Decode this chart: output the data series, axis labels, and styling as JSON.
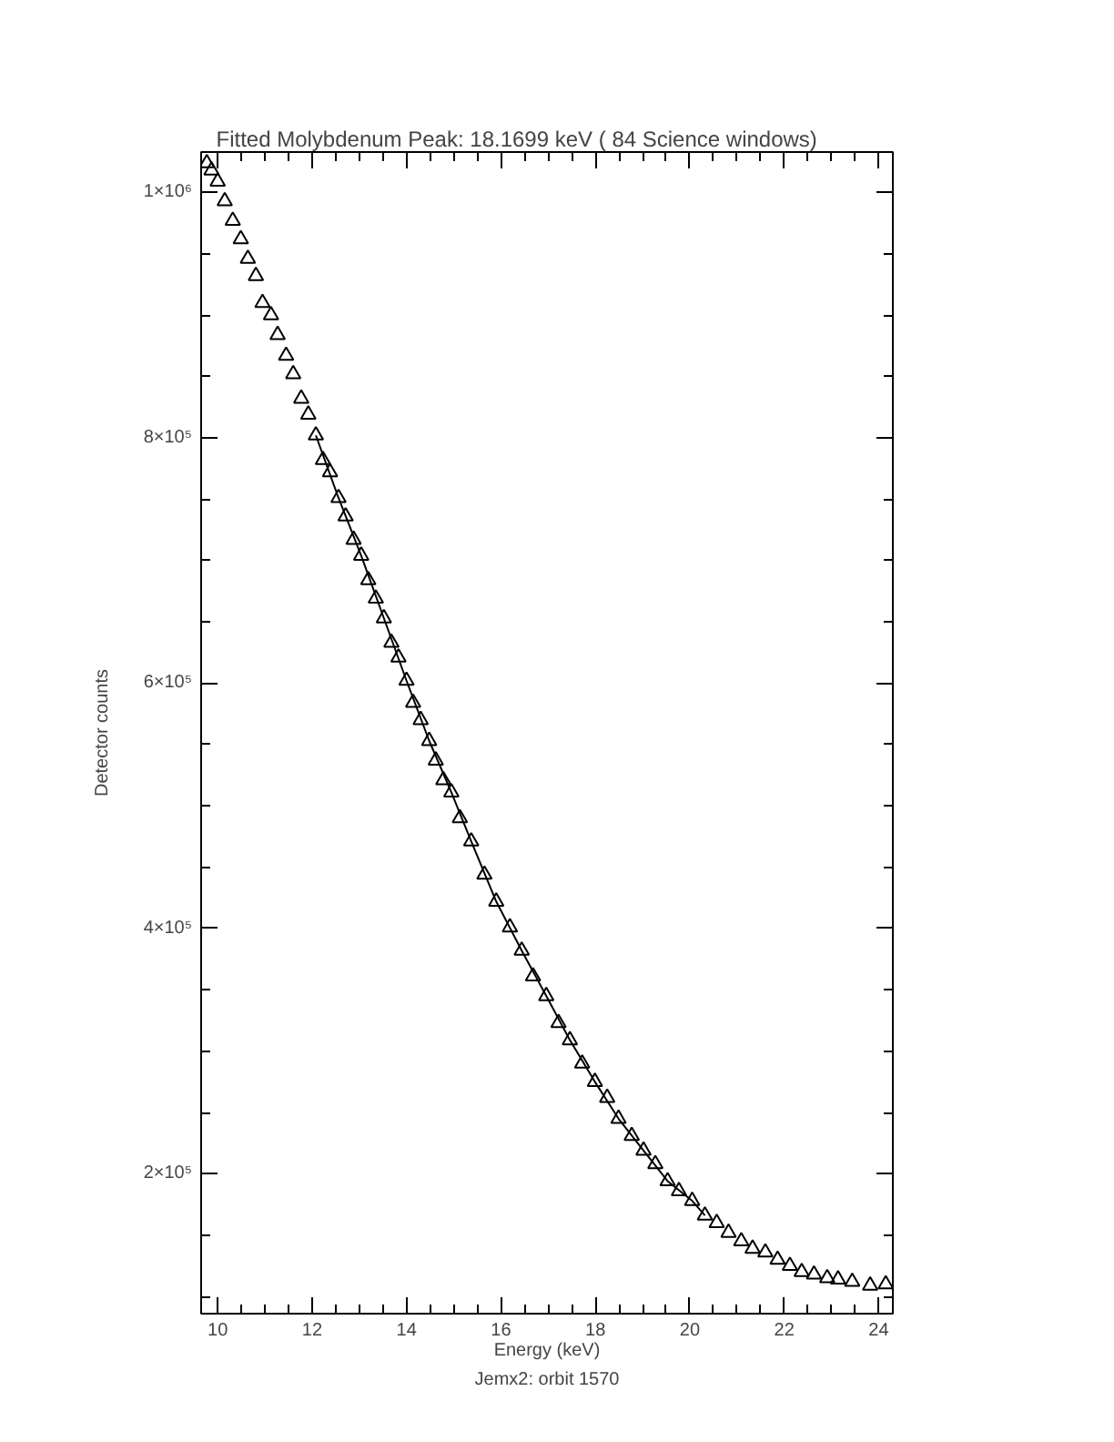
{
  "chart_data": {
    "type": "scatter",
    "title": "Fitted Molybdenum Peak:      18.1699 keV (      84 Science windows)",
    "xlabel": "Energy (keV)",
    "ylabel": "Detector counts",
    "annotations": [
      "Jemx2: orbit 1570"
    ],
    "x": [
      9.77,
      9.87,
      10.0,
      10.15,
      10.32,
      10.49,
      10.64,
      10.81,
      10.95,
      11.13,
      11.27,
      11.45,
      11.6,
      11.77,
      11.92,
      12.08,
      12.23,
      12.38,
      12.56,
      12.71,
      12.88,
      13.04,
      13.19,
      13.35,
      13.52,
      13.68,
      13.83,
      14.0,
      14.14,
      14.3,
      14.48,
      14.62,
      14.78,
      14.95,
      15.13,
      15.37,
      15.65,
      15.9,
      16.19,
      16.44,
      16.68,
      16.96,
      17.22,
      17.46,
      17.72,
      17.99,
      18.25,
      18.49,
      18.77,
      19.02,
      19.27,
      19.53,
      19.77,
      20.05,
      20.32,
      20.57,
      20.82,
      21.09,
      21.33,
      21.6,
      21.86,
      22.12,
      22.37,
      22.63,
      22.91,
      23.14,
      23.44,
      23.82,
      24.15
    ],
    "series": [
      {
        "color": "#000000",
        "marker": "triangle",
        "values": [
          1024000,
          1018000,
          1009000,
          993000,
          977000,
          962000,
          946000,
          932000,
          910000,
          900000,
          884000,
          867000,
          852000,
          832000,
          819000,
          802000,
          782000,
          772000,
          751000,
          736000,
          717000,
          704000,
          684000,
          669000,
          653000,
          633000,
          621000,
          602000,
          584000,
          570000,
          553000,
          537000,
          521000,
          511000,
          490000,
          471000,
          444000,
          422000,
          401000,
          382000,
          361000,
          345000,
          323000,
          309000,
          290000,
          275000,
          262000,
          245000,
          231000,
          219000,
          208000,
          194000,
          186000,
          178000,
          166000,
          160000,
          152000,
          145000,
          139000,
          136000,
          130000,
          125000,
          120000,
          118000,
          115000,
          114000,
          112000,
          109000,
          110000
        ]
      },
      {
        "type": "line",
        "color": "#000000",
        "marker": "none",
        "line_style": "solid",
        "x": [
          12.08,
          12.56,
          13.04,
          13.52,
          14.0,
          14.48,
          14.95,
          15.37,
          15.9,
          16.44,
          16.96,
          17.46,
          17.99,
          18.49,
          19.02,
          19.53,
          20.05,
          20.32
        ],
        "values": [
          802000,
          751000,
          704000,
          653000,
          602000,
          553000,
          511000,
          471000,
          422000,
          382000,
          345000,
          309000,
          275000,
          245000,
          219000,
          194000,
          178000,
          166000
        ]
      }
    ],
    "xlim": [
      9.65,
      24.3
    ],
    "ylim": [
      86000,
      1033000
    ],
    "xticks": [
      10,
      {
        "value": 10.5,
        "label": null
      },
      {
        "value": 11,
        "label": null
      },
      {
        "value": 11.5,
        "label": null
      },
      12,
      {
        "value": 12.5,
        "label": null
      },
      {
        "value": 13,
        "label": null
      },
      {
        "value": 13.5,
        "label": null
      },
      14,
      {
        "value": 14.5,
        "label": null
      },
      {
        "value": 15,
        "label": null
      },
      {
        "value": 15.5,
        "label": null
      },
      16,
      {
        "value": 16.5,
        "label": null
      },
      {
        "value": 17,
        "label": null
      },
      {
        "value": 17.5,
        "label": null
      },
      18,
      {
        "value": 18.5,
        "label": null
      },
      {
        "value": 19,
        "label": null
      },
      {
        "value": 19.5,
        "label": null
      },
      20,
      {
        "value": 20.5,
        "label": null
      },
      {
        "value": 21,
        "label": null
      },
      {
        "value": 21.5,
        "label": null
      },
      22,
      {
        "value": 22.5,
        "label": null
      },
      {
        "value": 23,
        "label": null
      },
      {
        "value": 23.5,
        "label": null
      },
      24
    ],
    "yticks": [
      {
        "value": 100000,
        "label": null
      },
      {
        "value": 150000,
        "label": null
      },
      {
        "value": 200000,
        "label": "2×10⁵"
      },
      {
        "value": 250000,
        "label": null
      },
      {
        "value": 300000,
        "label": null
      },
      {
        "value": 350000,
        "label": null
      },
      {
        "value": 400000,
        "label": "4×10⁵"
      },
      {
        "value": 450000,
        "label": null
      },
      {
        "value": 500000,
        "label": null
      },
      {
        "value": 550000,
        "label": null
      },
      {
        "value": 600000,
        "label": "6×10⁵"
      },
      {
        "value": 650000,
        "label": null
      },
      {
        "value": 700000,
        "label": null
      },
      {
        "value": 750000,
        "label": null
      },
      {
        "value": 800000,
        "label": "8×10⁵"
      },
      {
        "value": 850000,
        "label": null
      },
      {
        "value": 900000,
        "label": null
      },
      {
        "value": 950000,
        "label": null
      },
      {
        "value": 1000000,
        "label": "1×10⁶"
      }
    ],
    "grid": false
  }
}
